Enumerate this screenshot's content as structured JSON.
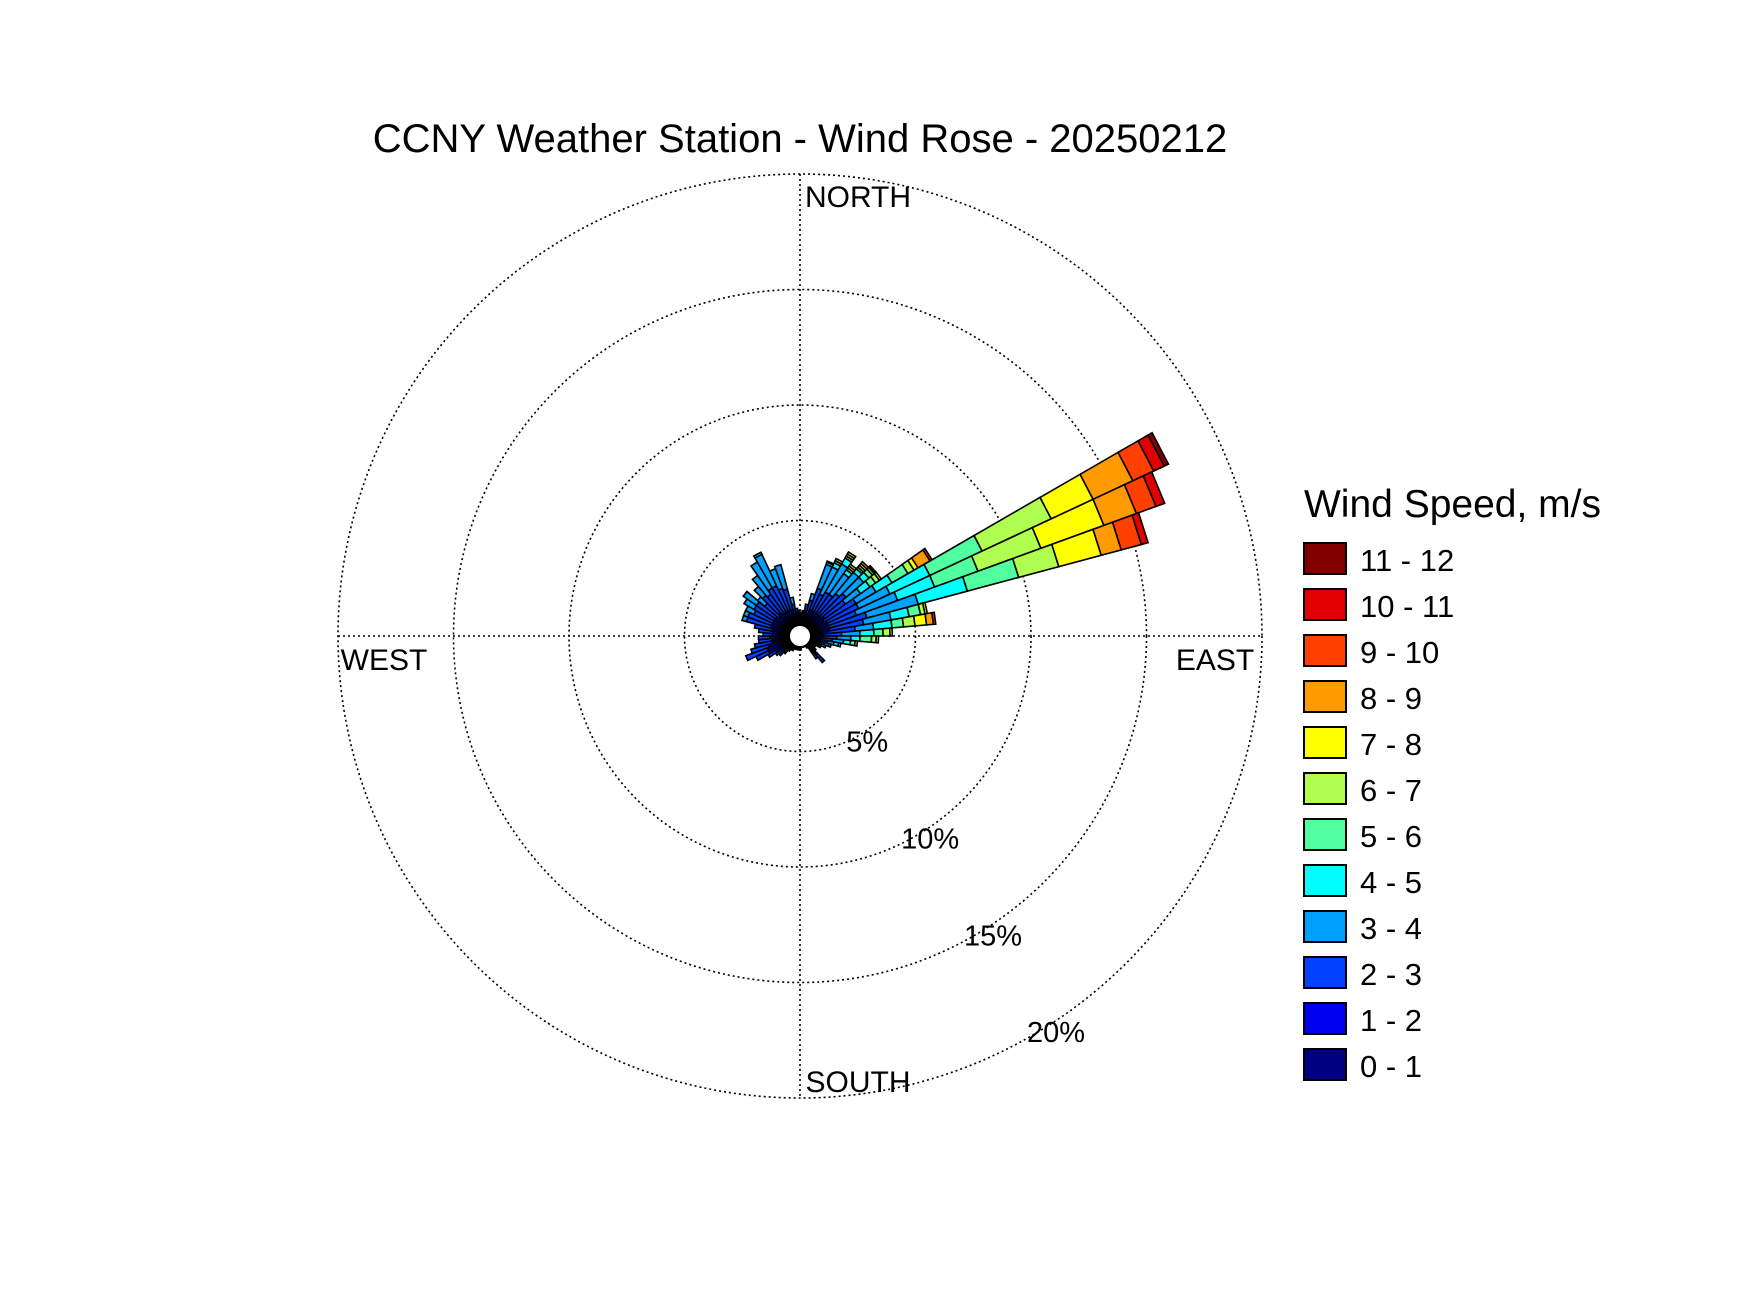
{
  "chart_data": {
    "type": "wind-rose",
    "title": "CCNY Weather Station - Wind Rose - 20250212",
    "compass_labels": {
      "north": "NORTH",
      "east": "EAST",
      "south": "SOUTH",
      "west": "WEST"
    },
    "radial_axis": {
      "unit": "%",
      "max": 20,
      "ticks": [
        5,
        10,
        15,
        20
      ],
      "tick_labels": [
        "5%",
        "10%",
        "15%",
        "20%"
      ]
    },
    "legend": {
      "title": "Wind Speed, m/s",
      "placement": "right",
      "bins": [
        {
          "label": "11 - 12",
          "color": "#800000"
        },
        {
          "label": "10 - 11",
          "color": "#e00000"
        },
        {
          "label": "9 - 10",
          "color": "#ff4000"
        },
        {
          "label": "8 - 9",
          "color": "#ff9a00"
        },
        {
          "label": "7 - 8",
          "color": "#ffff00"
        },
        {
          "label": "6 - 7",
          "color": "#b0ff50"
        },
        {
          "label": "5 - 6",
          "color": "#50ffa0"
        },
        {
          "label": "4 - 5",
          "color": "#00ffff"
        },
        {
          "label": "3 - 4",
          "color": "#00a0ff"
        },
        {
          "label": "2 - 3",
          "color": "#0040ff"
        },
        {
          "label": "1 - 2",
          "color": "#0000f0"
        },
        {
          "label": "0 - 1",
          "color": "#000080"
        }
      ]
    },
    "sector_width_deg": 5,
    "calm_center": true,
    "bin_order": [
      "0 - 1",
      "1 - 2",
      "2 - 3",
      "3 - 4",
      "4 - 5",
      "5 - 6",
      "6 - 7",
      "7 - 8",
      "8 - 9",
      "9 - 10",
      "10 - 11",
      "11 - 12"
    ],
    "sectors": [
      {
        "direction": 2.5,
        "cumulative": [
          0.2,
          1.0
        ]
      },
      {
        "direction": 7.5,
        "cumulative": [
          0.2,
          1.0,
          1.1
        ]
      },
      {
        "direction": 12.5,
        "cumulative": [
          0.2,
          1.1,
          1.4
        ]
      },
      {
        "direction": 17.5,
        "cumulative": [
          0.2,
          1.0,
          1.6,
          1.9
        ]
      },
      {
        "direction": 22.5,
        "cumulative": [
          0.2,
          1.2,
          2.2,
          3.3,
          3.4,
          3.45
        ]
      },
      {
        "direction": 27.5,
        "cumulative": [
          0.2,
          1.2,
          2.0,
          3.3,
          3.5,
          3.6,
          3.7
        ]
      },
      {
        "direction": 32.5,
        "cumulative": [
          0.2,
          1.2,
          2.2,
          3.6,
          3.9,
          4.0,
          4.1,
          4.2
        ]
      },
      {
        "direction": 37.5,
        "cumulative": [
          0.2,
          1.2,
          2.2,
          3.3,
          3.5,
          3.6,
          3.7,
          3.8
        ]
      },
      {
        "direction": 42.5,
        "cumulative": [
          0.2,
          1.2,
          2.4,
          3.6,
          3.8,
          3.9,
          4.0,
          4.1,
          4.2
        ]
      },
      {
        "direction": 47.5,
        "cumulative": [
          0.2,
          1.2,
          2.6,
          3.6,
          3.9,
          4.1,
          4.2,
          4.25,
          4.3
        ]
      },
      {
        "direction": 52.5,
        "cumulative": [
          0.2,
          1.3,
          2.4,
          3.2,
          3.7,
          4.0,
          4.2,
          4.3
        ]
      },
      {
        "direction": 57.5,
        "cumulative": [
          0.2,
          1.2,
          2.8,
          3.8,
          4.6,
          5.4,
          5.7,
          5.9,
          6.5,
          6.6
        ]
      },
      {
        "direction": 62.5,
        "cumulative": [
          0.2,
          1.3,
          2.8,
          4.3,
          6.2,
          8.7,
          12.0,
          14.0,
          15.9,
          16.9,
          17.4,
          17.6
        ]
      },
      {
        "direction": 67.5,
        "cumulative": [
          0.2,
          1.3,
          2.6,
          4.5,
          6.2,
          8.2,
          11.1,
          14.0,
          15.5,
          16.4,
          16.8
        ]
      },
      {
        "direction": 72.5,
        "cumulative": [
          0.2,
          1.3,
          3.0,
          5.3,
          7.5,
          9.8,
          11.6,
          13.5,
          14.4,
          15.3,
          15.6
        ]
      },
      {
        "direction": 77.5,
        "cumulative": [
          0.2,
          1.3,
          2.8,
          4.0,
          4.8,
          5.3,
          5.5,
          5.6
        ]
      },
      {
        "direction": 82.5,
        "cumulative": [
          0.2,
          1.2,
          2.4,
          3.2,
          4.0,
          4.5,
          5.0,
          5.5,
          5.8,
          5.9
        ]
      },
      {
        "direction": 87.5,
        "cumulative": [
          0.2,
          1.0,
          1.8,
          2.6,
          3.2,
          3.6,
          3.9,
          4.0
        ]
      },
      {
        "direction": 92.5,
        "cumulative": [
          0.2,
          1.0,
          1.6,
          2.2,
          2.6,
          3.1,
          3.3,
          3.4
        ]
      },
      {
        "direction": 97.5,
        "cumulative": [
          0.2,
          0.9,
          1.4,
          1.9,
          2.2,
          2.4,
          2.5
        ]
      },
      {
        "direction": 102.5,
        "cumulative": [
          0.2,
          0.8,
          1.2,
          1.5,
          1.7,
          1.8
        ]
      },
      {
        "direction": 107.5,
        "cumulative": [
          0.2,
          0.7,
          1.1,
          1.3,
          1.4
        ]
      },
      {
        "direction": 112.5,
        "cumulative": [
          0.2,
          0.7,
          1.0,
          1.2
        ]
      },
      {
        "direction": 117.5,
        "cumulative": [
          0.2,
          0.6,
          0.9,
          1.0
        ]
      },
      {
        "direction": 122.5,
        "cumulative": [
          0.2,
          0.6,
          0.8
        ]
      },
      {
        "direction": 127.5,
        "cumulative": [
          0.2,
          0.5,
          0.7
        ]
      },
      {
        "direction": 132.5,
        "cumulative": [
          0.2,
          0.6,
          0.9
        ]
      },
      {
        "direction": 137.5,
        "cumulative": [
          0.2,
          1.0,
          1.5
        ]
      },
      {
        "direction": 142.5,
        "cumulative": [
          0.2,
          0.9,
          1.2
        ]
      },
      {
        "direction": 147.5,
        "cumulative": [
          0.2,
          0.5,
          0.6
        ]
      },
      {
        "direction": 152.5,
        "cumulative": [
          0.2,
          0.5
        ]
      },
      {
        "direction": 157.5,
        "cumulative": [
          0.2,
          0.5
        ]
      },
      {
        "direction": 162.5,
        "cumulative": [
          0.2,
          0.5
        ]
      },
      {
        "direction": 167.5,
        "cumulative": [
          0.2,
          0.5
        ]
      },
      {
        "direction": 172.5,
        "cumulative": [
          0.2,
          0.5
        ]
      },
      {
        "direction": 177.5,
        "cumulative": [
          0.2,
          0.6
        ]
      },
      {
        "direction": 182.5,
        "cumulative": [
          0.2,
          0.6
        ]
      },
      {
        "direction": 187.5,
        "cumulative": [
          0.2,
          0.5
        ]
      },
      {
        "direction": 192.5,
        "cumulative": [
          0.2,
          0.6
        ]
      },
      {
        "direction": 197.5,
        "cumulative": [
          0.2,
          0.5
        ]
      },
      {
        "direction": 202.5,
        "cumulative": [
          0.2,
          0.6
        ]
      },
      {
        "direction": 207.5,
        "cumulative": [
          0.2,
          0.7
        ]
      },
      {
        "direction": 212.5,
        "cumulative": [
          0.2,
          0.6
        ]
      },
      {
        "direction": 217.5,
        "cumulative": [
          0.2,
          0.7,
          0.8
        ]
      },
      {
        "direction": 222.5,
        "cumulative": [
          0.2,
          0.8,
          1.0
        ]
      },
      {
        "direction": 227.5,
        "cumulative": [
          0.2,
          0.9,
          1.2
        ]
      },
      {
        "direction": 232.5,
        "cumulative": [
          0.2,
          1.0,
          1.3
        ]
      },
      {
        "direction": 237.5,
        "cumulative": [
          0.2,
          1.2,
          1.6
        ]
      },
      {
        "direction": 242.5,
        "cumulative": [
          0.2,
          1.5,
          2.1
        ]
      },
      {
        "direction": 247.5,
        "cumulative": [
          0.2,
          1.5,
          2.5
        ]
      },
      {
        "direction": 252.5,
        "cumulative": [
          0.2,
          1.4,
          2.2
        ]
      },
      {
        "direction": 257.5,
        "cumulative": [
          0.2,
          1.2,
          2.0
        ]
      },
      {
        "direction": 262.5,
        "cumulative": [
          0.2,
          1.2,
          1.8
        ]
      },
      {
        "direction": 267.5,
        "cumulative": [
          0.2,
          1.3,
          1.8
        ]
      },
      {
        "direction": 272.5,
        "cumulative": [
          0.2,
          1.2,
          1.6
        ]
      },
      {
        "direction": 277.5,
        "cumulative": [
          0.2,
          1.2,
          1.8
        ]
      },
      {
        "direction": 282.5,
        "cumulative": [
          0.2,
          1.2,
          2.0
        ]
      },
      {
        "direction": 287.5,
        "cumulative": [
          0.2,
          1.3,
          2.4,
          2.6
        ]
      },
      {
        "direction": 292.5,
        "cumulative": [
          0.2,
          1.3,
          2.4,
          2.6
        ]
      },
      {
        "direction": 297.5,
        "cumulative": [
          0.2,
          1.3,
          2.2,
          2.6
        ]
      },
      {
        "direction": 302.5,
        "cumulative": [
          0.2,
          1.3,
          2.3,
          2.8
        ]
      },
      {
        "direction": 307.5,
        "cumulative": [
          0.2,
          1.3,
          2.3,
          3.0
        ]
      },
      {
        "direction": 312.5,
        "cumulative": [
          0.2,
          1.2,
          2.0,
          2.4
        ]
      },
      {
        "direction": 317.5,
        "cumulative": [
          0.2,
          1.3,
          2.3,
          2.8
        ]
      },
      {
        "direction": 322.5,
        "cumulative": [
          0.2,
          1.2,
          2.2,
          3.2
        ]
      },
      {
        "direction": 327.5,
        "cumulative": [
          0.2,
          1.2,
          2.4,
          3.7
        ]
      },
      {
        "direction": 332.5,
        "cumulative": [
          0.2,
          1.2,
          2.4,
          3.9,
          4.0
        ]
      },
      {
        "direction": 337.5,
        "cumulative": [
          0.2,
          1.2,
          2.2,
          3.1
        ]
      },
      {
        "direction": 342.5,
        "cumulative": [
          0.2,
          1.2,
          2.1,
          3.2
        ]
      },
      {
        "direction": 347.5,
        "cumulative": [
          0.2,
          1.0,
          1.4,
          1.7
        ]
      },
      {
        "direction": 352.5,
        "cumulative": [
          0.2,
          1.0,
          1.2
        ]
      },
      {
        "direction": 357.5,
        "cumulative": [
          0.2,
          1.0,
          1.1
        ]
      }
    ]
  }
}
